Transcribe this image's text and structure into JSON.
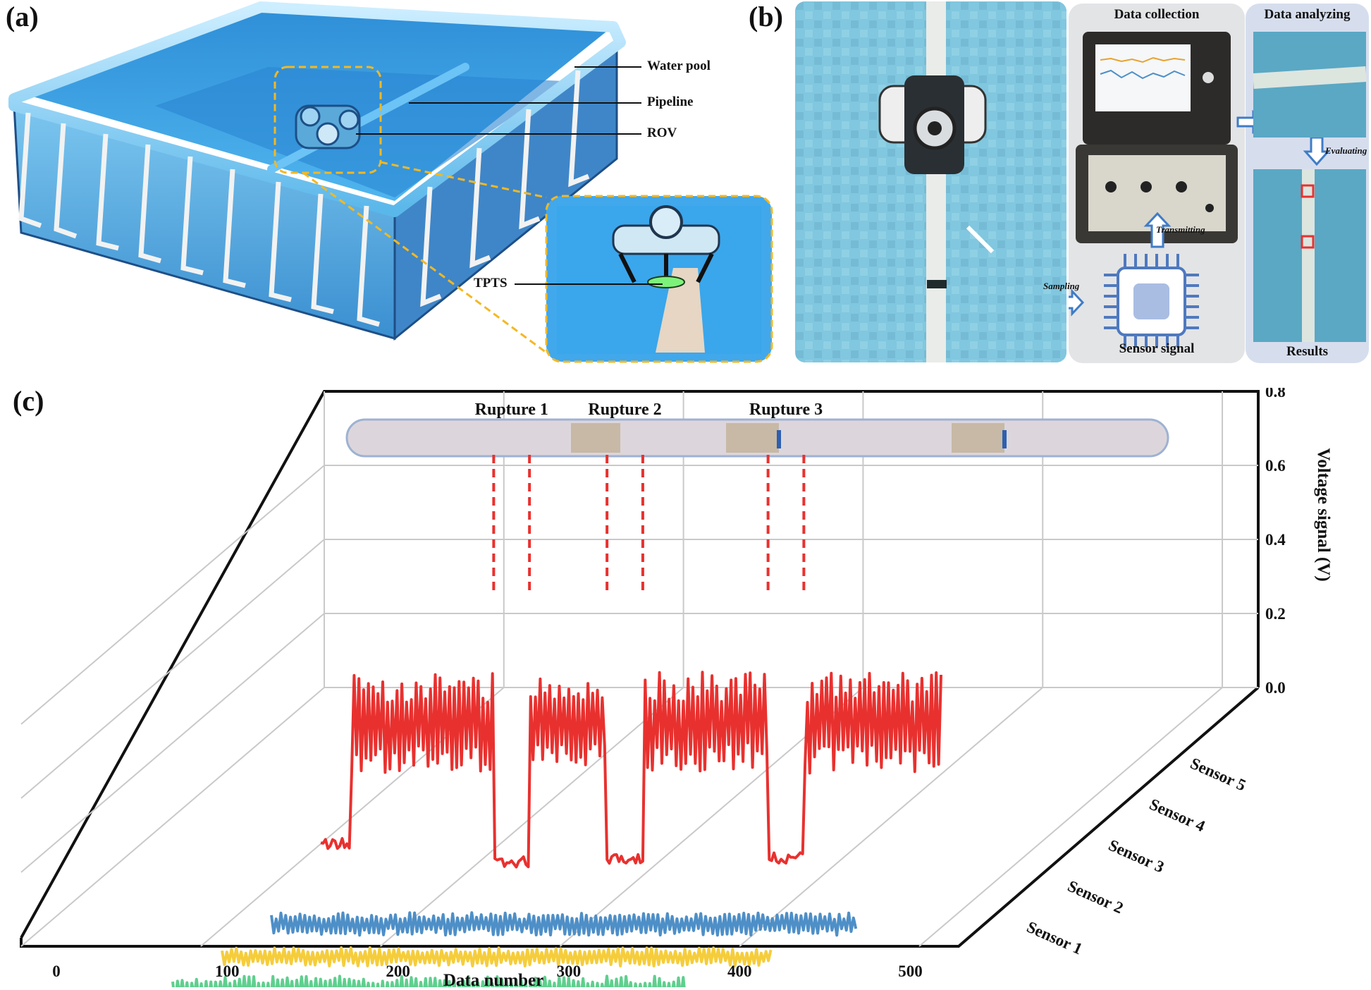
{
  "panels": {
    "a": "(a)",
    "b": "(b)",
    "c": "(c)"
  },
  "panel_a": {
    "callouts": [
      "Water pool",
      "Pipeline",
      "ROV",
      "TPTS"
    ]
  },
  "panel_b": {
    "collection_title": "Data collection",
    "analyzing_title": "Data analyzing",
    "sensor_signal": "Sensor signal",
    "results": "Results",
    "sampling": "Sampling",
    "transmitting": "Transmitting",
    "evaluating": "Evaluating"
  },
  "colors": {
    "sensor_5": "#e8312f",
    "sensor_4": "#4e8fc7",
    "sensor_3": "#f5cd3c",
    "sensor_2": "#5fcf8e",
    "sensor_1": "#8b88b8",
    "rupture_marker": "#e8312f",
    "pool_blue": "#3a9fe0"
  },
  "chart_data": {
    "type": "line",
    "projection": "3d-waterfall",
    "xlabel": "Data number",
    "ylabel": "Voltage signal (V)",
    "x_ticks": [
      "0",
      "100",
      "200",
      "300",
      "400",
      "500"
    ],
    "y_ticks": [
      "0.0",
      "0.2",
      "0.4",
      "0.6",
      "0.8"
    ],
    "xlim": [
      0,
      520
    ],
    "ylim": [
      0,
      0.8
    ],
    "grid": true,
    "depth_labels": [
      "Sensor 1",
      "Sensor 2",
      "Sensor 3",
      "Sensor 4",
      "Sensor 5"
    ],
    "annotations": [
      {
        "text": "Rupture 1",
        "x_start": 145,
        "x_end": 175
      },
      {
        "text": "Rupture 2",
        "x_start": 240,
        "x_end": 270
      },
      {
        "text": "Rupture 3",
        "x_start": 375,
        "x_end": 405
      }
    ],
    "series": [
      {
        "name": "Sensor 5",
        "x_start": 0,
        "x_end": 520,
        "baseline": 0.42,
        "amplitude": 0.14,
        "period": 5,
        "low_segments": [
          [
            0,
            25,
            0.07
          ],
          [
            145,
            175,
            0.02
          ],
          [
            240,
            270,
            0.03
          ],
          [
            375,
            405,
            0.03
          ]
        ],
        "peak": 0.62
      },
      {
        "name": "Sensor 4",
        "x_start": 0,
        "x_end": 490,
        "baseline": 0.03,
        "amplitude": 0.05,
        "period": 5
      },
      {
        "name": "Sensor 3",
        "x_start": 0,
        "x_end": 460,
        "baseline": 0.04,
        "amplitude": 0.04,
        "period": 6
      },
      {
        "name": "Sensor 2",
        "x_start": 0,
        "x_end": 430,
        "baseline": 0.05,
        "amplitude": 0.06,
        "period": 5
      },
      {
        "name": "Sensor 1",
        "x_start": 0,
        "x_end": 400,
        "baseline": 0.04,
        "amplitude": 0.04,
        "period": 7
      }
    ]
  }
}
